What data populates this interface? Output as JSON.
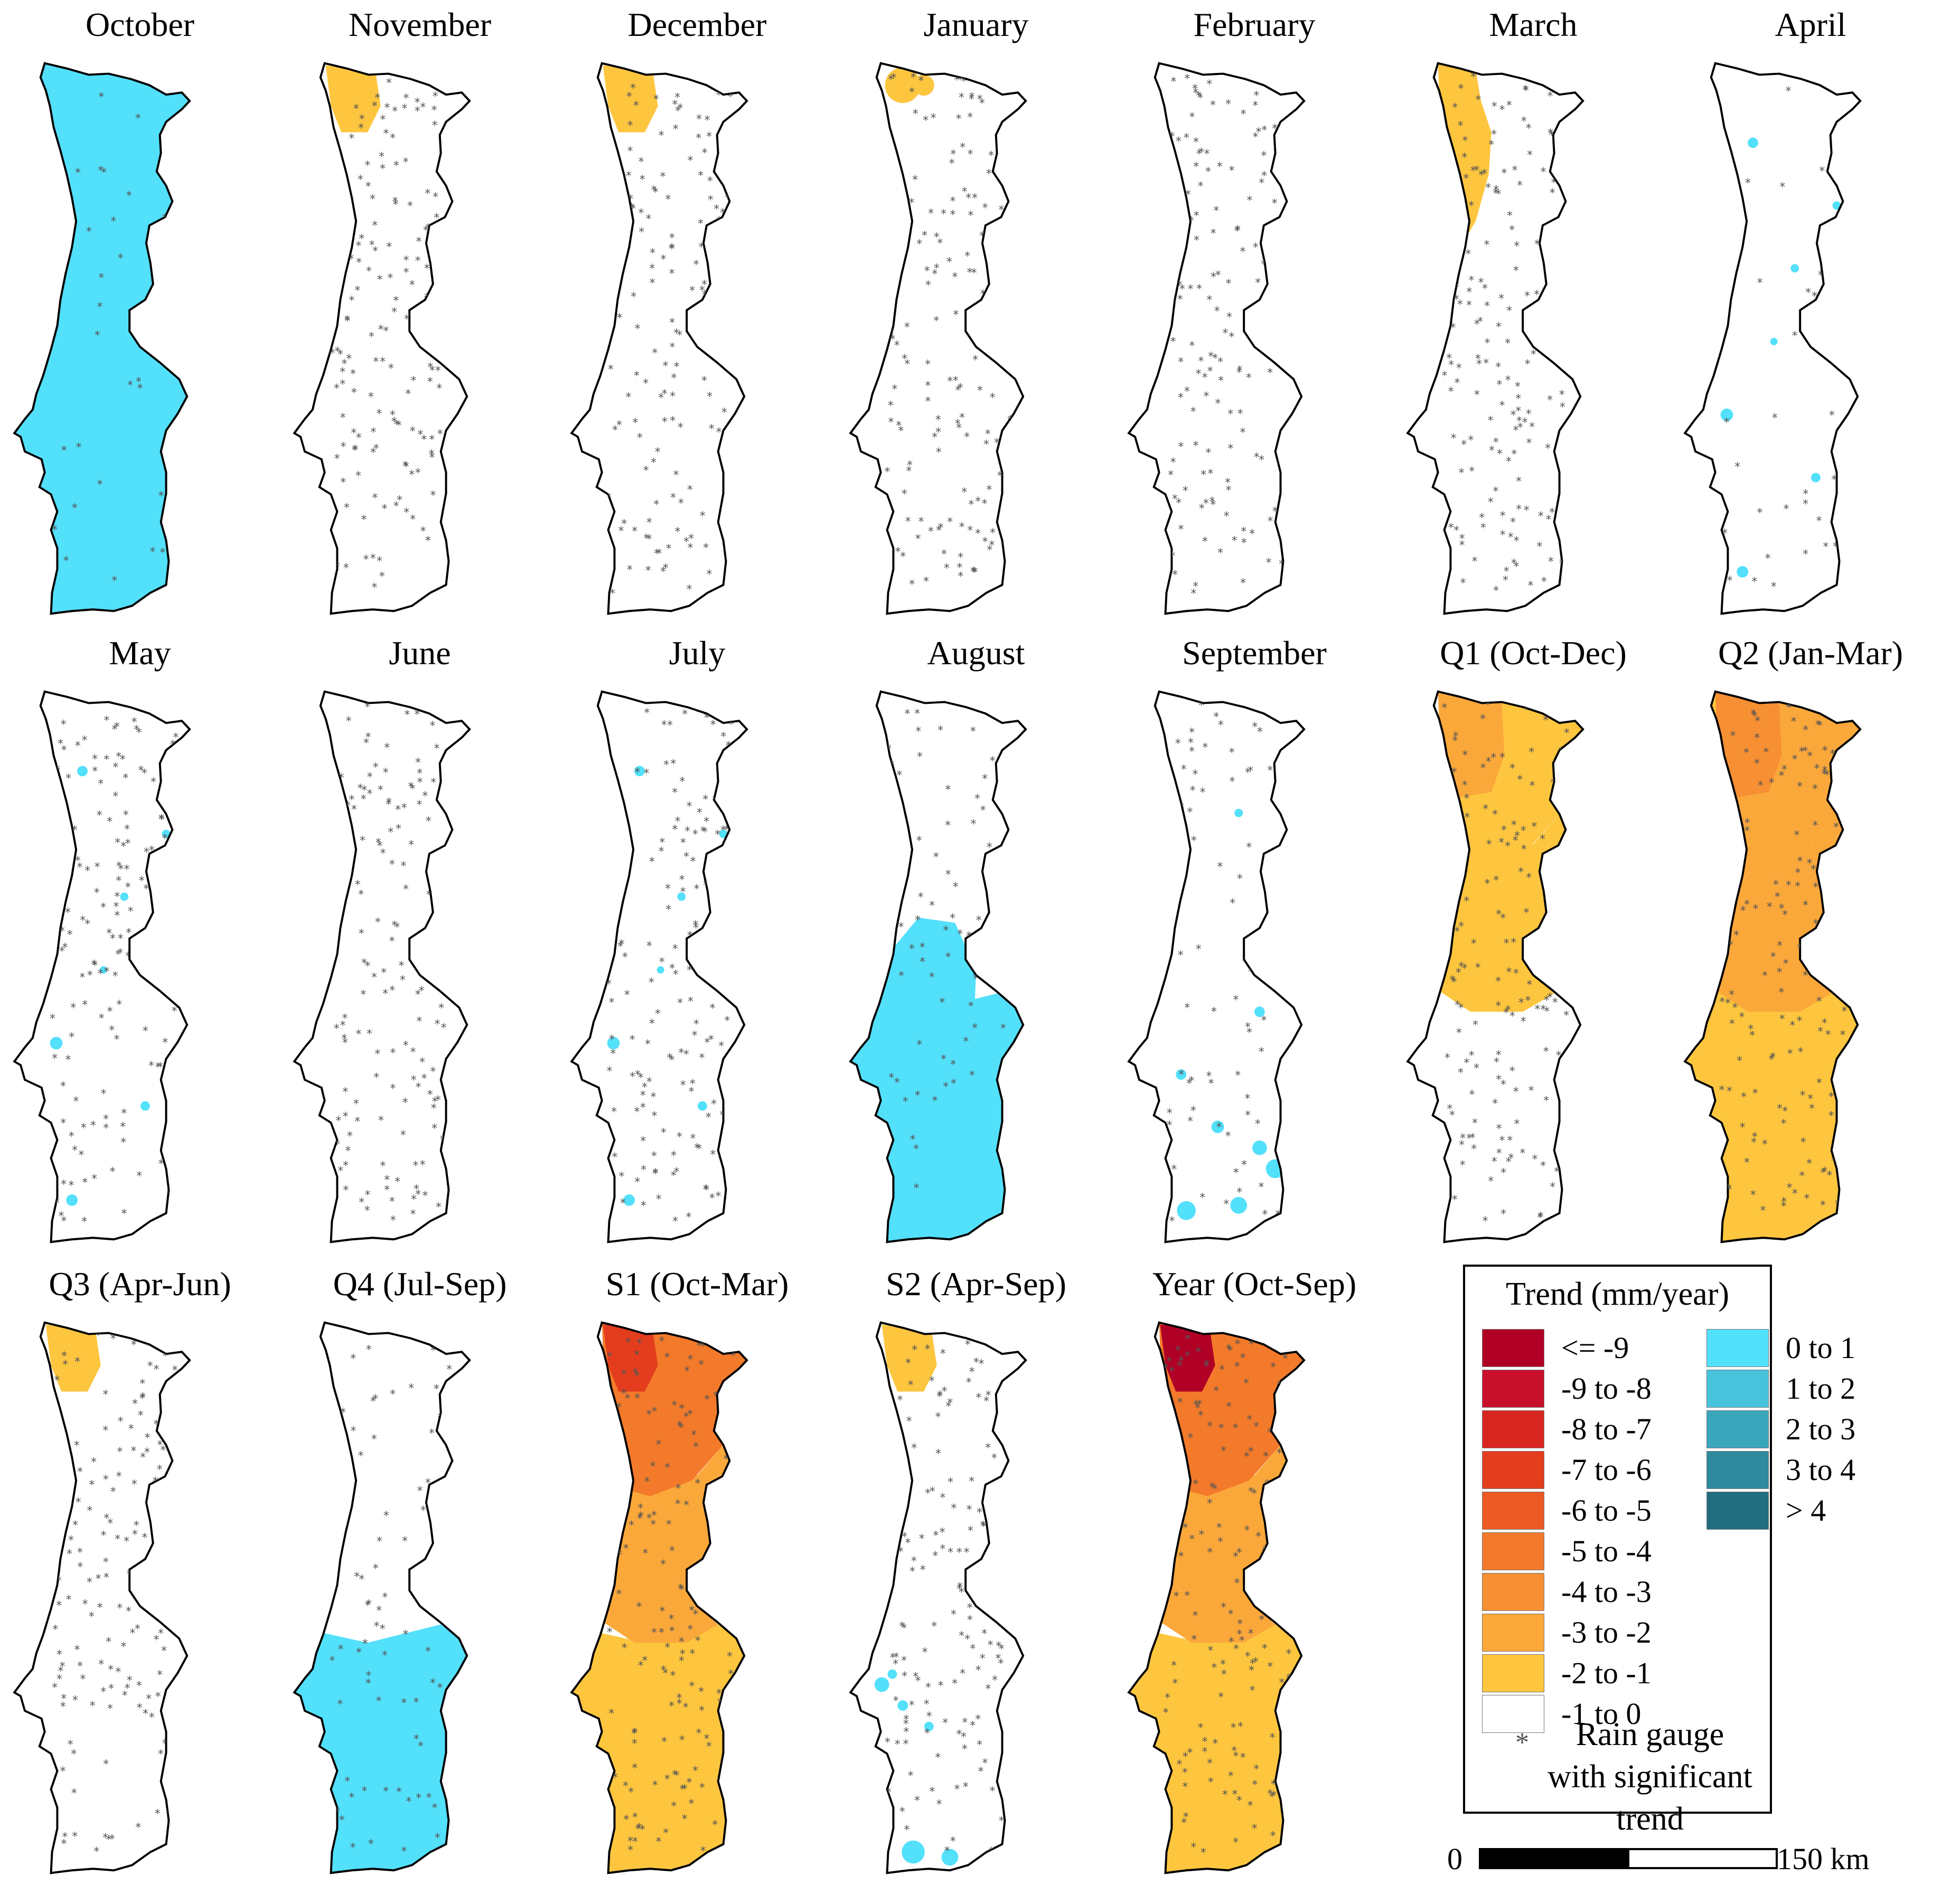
{
  "panels": [
    {
      "id": "oct",
      "title": "October",
      "fill": [
        {
          "cls": "0 to 1",
          "coverage": "most of country"
        }
      ],
      "star_density": "low"
    },
    {
      "id": "nov",
      "title": "November",
      "fill": [
        {
          "cls": "-2 to -1",
          "coverage": "far north-west"
        }
      ],
      "star_density": "high"
    },
    {
      "id": "dec",
      "title": "December",
      "fill": [
        {
          "cls": "-2 to -1",
          "coverage": "far north-west"
        }
      ],
      "star_density": "high"
    },
    {
      "id": "jan",
      "title": "January",
      "fill": [
        {
          "cls": "-2 to -1",
          "coverage": "small north-west patch"
        }
      ],
      "star_density": "high"
    },
    {
      "id": "feb",
      "title": "February",
      "fill": [],
      "star_density": "high"
    },
    {
      "id": "mar",
      "title": "March",
      "fill": [
        {
          "cls": "-2 to -1",
          "coverage": "north-west to centre band"
        }
      ],
      "star_density": "high"
    },
    {
      "id": "apr",
      "title": "April",
      "fill": [
        {
          "cls": "0 to 1",
          "coverage": "isolated spots"
        }
      ],
      "star_density": "low"
    },
    {
      "id": "may",
      "title": "May",
      "fill": [
        {
          "cls": "0 to 1",
          "coverage": "isolated spots"
        }
      ],
      "star_density": "high"
    },
    {
      "id": "jun",
      "title": "June",
      "fill": [],
      "star_density": "high"
    },
    {
      "id": "jul",
      "title": "July",
      "fill": [
        {
          "cls": "0 to 1",
          "coverage": "isolated spots"
        }
      ],
      "star_density": "high"
    },
    {
      "id": "aug",
      "title": "August",
      "fill": [
        {
          "cls": "0 to 1",
          "coverage": "centre-west and south"
        }
      ],
      "star_density": "medium"
    },
    {
      "id": "sep",
      "title": "September",
      "fill": [
        {
          "cls": "0 to 1",
          "coverage": "scattered spots, south"
        }
      ],
      "star_density": "medium"
    },
    {
      "id": "q1",
      "title": "Q1 (Oct-Dec)",
      "fill": [
        {
          "cls": "-2 to -1",
          "coverage": "north and centre"
        },
        {
          "cls": "-3 to -2",
          "coverage": "north-west"
        }
      ],
      "star_density": "high"
    },
    {
      "id": "q2",
      "title": "Q2 (Jan-Mar)",
      "fill": [
        {
          "cls": "-2 to -1",
          "coverage": "whole country"
        },
        {
          "cls": "-3 to -2",
          "coverage": "north and centre"
        },
        {
          "cls": "-4 to -3",
          "coverage": "north-west"
        }
      ],
      "star_density": "high"
    },
    {
      "id": "q3",
      "title": "Q3 (Apr-Jun)",
      "fill": [
        {
          "cls": "-2 to -1",
          "coverage": "far north-west"
        }
      ],
      "star_density": "high"
    },
    {
      "id": "q4",
      "title": "Q4 (Jul-Sep)",
      "fill": [
        {
          "cls": "0 to 1",
          "coverage": "south"
        }
      ],
      "star_density": "medium"
    },
    {
      "id": "s1",
      "title": "S1 (Oct-Mar)",
      "fill": [
        {
          "cls": "-2 to -1",
          "coverage": "south"
        },
        {
          "cls": "-3 to -2",
          "coverage": "centre"
        },
        {
          "cls": "-5 to -4",
          "coverage": "north"
        },
        {
          "cls": "-7 to -6",
          "coverage": "north-west core"
        }
      ],
      "star_density": "high"
    },
    {
      "id": "s2",
      "title": "S2 (Apr-Sep)",
      "fill": [
        {
          "cls": "-2 to -1",
          "coverage": "far north-west"
        },
        {
          "cls": "0 to 1",
          "coverage": "south-west spots"
        }
      ],
      "star_density": "high"
    },
    {
      "id": "year",
      "title": "Year (Oct-Sep)",
      "fill": [
        {
          "cls": "-2 to -1",
          "coverage": "south"
        },
        {
          "cls": "-3 to -2",
          "coverage": "centre"
        },
        {
          "cls": "-5 to -4",
          "coverage": "north"
        },
        {
          "cls": "<= -9",
          "coverage": "north-west core"
        }
      ],
      "star_density": "high"
    }
  ],
  "legend": {
    "title": "Trend (mm/year)",
    "negative_classes": [
      {
        "label": "<= -9",
        "color": "#b10026"
      },
      {
        "label": "-9 to -8",
        "color": "#c8102a"
      },
      {
        "label": "-8 to -7",
        "color": "#d7261f"
      },
      {
        "label": "-7 to -6",
        "color": "#e43d1e"
      },
      {
        "label": "-6 to -5",
        "color": "#ee5a24"
      },
      {
        "label": "-5 to -4",
        "color": "#f37a2a"
      },
      {
        "label": "-4 to -3",
        "color": "#f78f33"
      },
      {
        "label": "-3 to -2",
        "color": "#fba83b"
      },
      {
        "label": "-2 to -1",
        "color": "#fec63f"
      },
      {
        "label": "-1 to 0",
        "color": "#ffffff"
      }
    ],
    "positive_classes": [
      {
        "label": "0 to 1",
        "color": "#53e0fb"
      },
      {
        "label": "1 to 2",
        "color": "#47c4dc"
      },
      {
        "label": "2 to 3",
        "color": "#3aa6bc"
      },
      {
        "label": "3 to 4",
        "color": "#2f8a9d"
      },
      {
        "label": "> 4",
        "color": "#236e7e"
      }
    ],
    "gauge_symbol": "*",
    "gauge_label": "Rain gauge with significant trend"
  },
  "scalebar": {
    "start": "0",
    "end": "150 km"
  }
}
